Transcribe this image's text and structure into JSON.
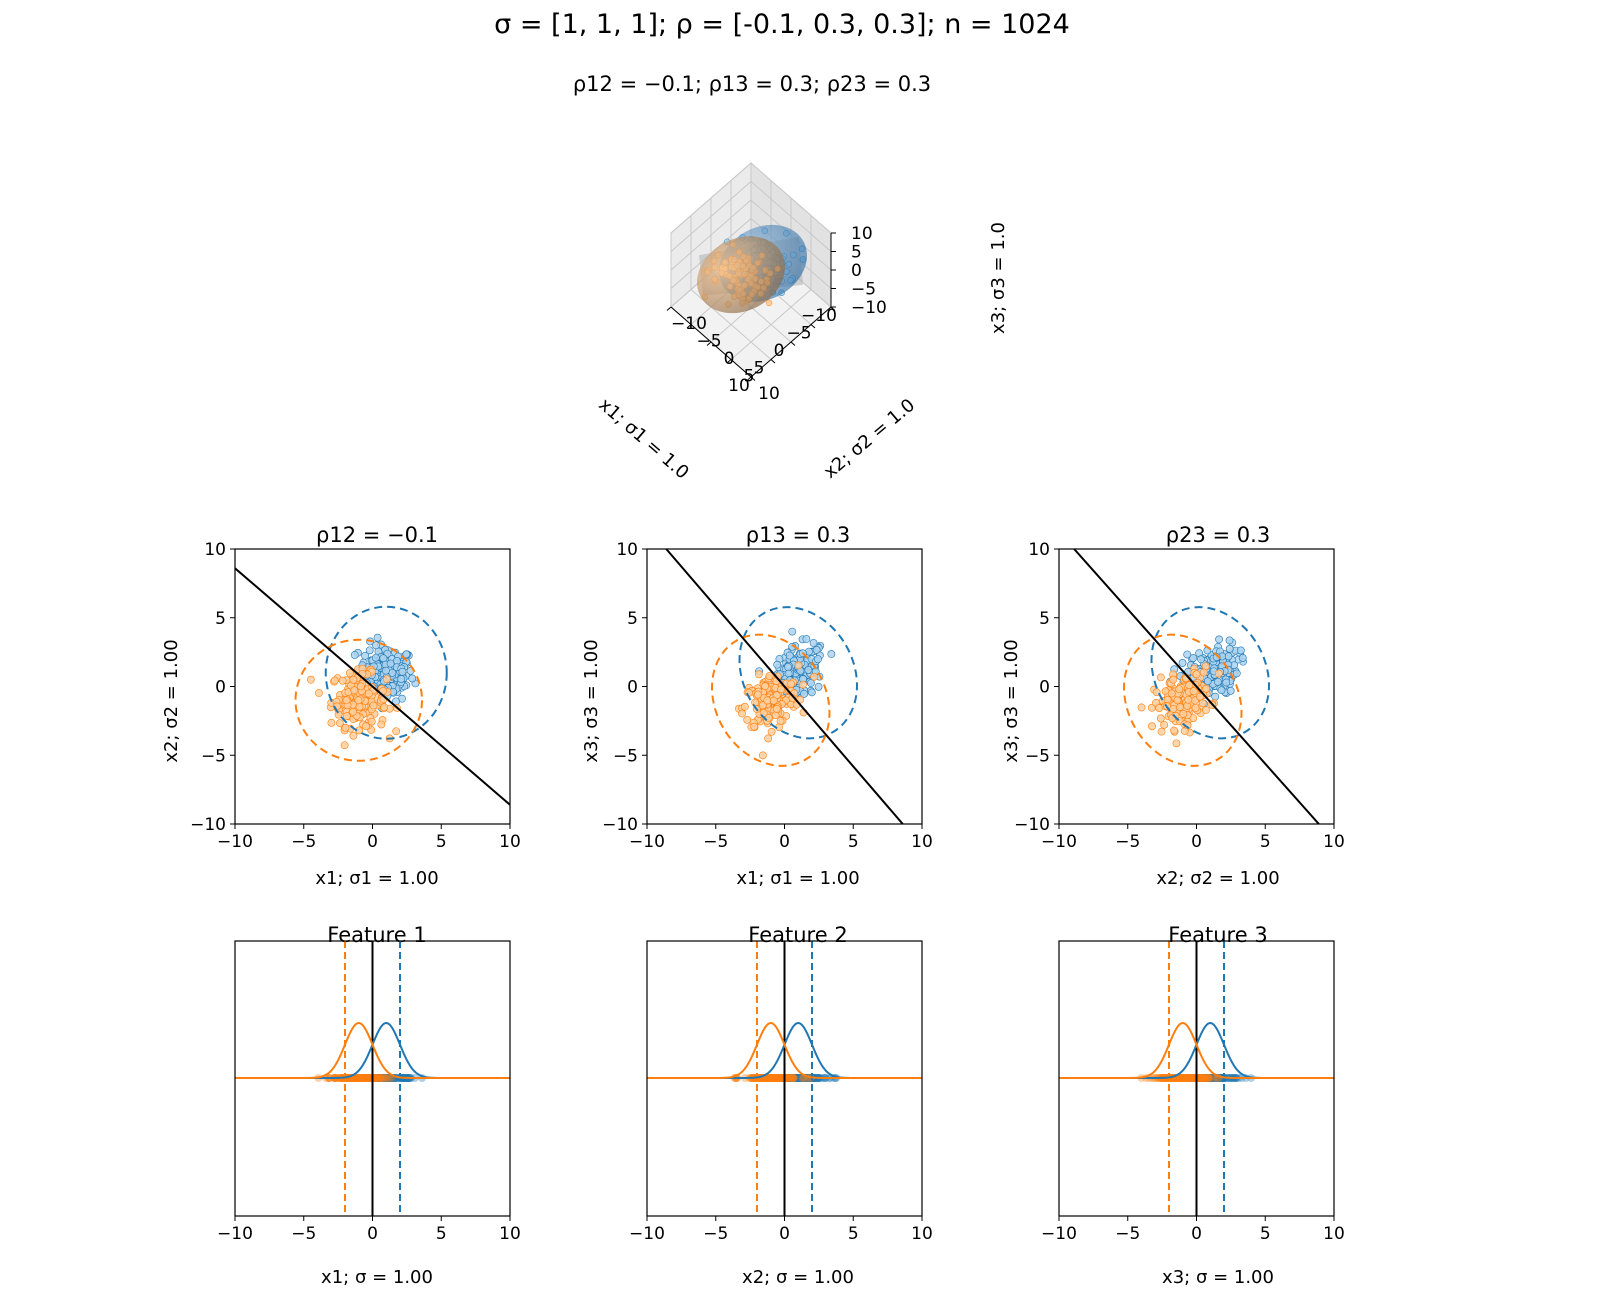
{
  "suptitle": "σ = [1, 1, 1]; ρ = [-0.1, 0.3, 0.3]; n = 1024",
  "colors": {
    "blue": "#1f77b4",
    "orange": "#ff7f0e",
    "line": "#000000"
  },
  "chart_data": [
    {
      "type": "3d-scatter",
      "title": "ρ12 = −0.1;  ρ13 = 0.3;  ρ23 = 0.3",
      "xlabel": "x1;  σ1 = 1.0",
      "ylabel": "x2;  σ2 = 1.0",
      "zlabel": "x3;  σ3 = 1.0",
      "xticks": [
        "−10",
        "−5",
        "0",
        "5",
        "10"
      ],
      "yticks": [
        "−10",
        "−5",
        "0",
        "5",
        "10"
      ],
      "zticks": [
        "−10",
        "−5",
        "0",
        "5",
        "10"
      ],
      "range": [
        -10,
        10
      ],
      "series": [
        {
          "color": "blue",
          "mean": [
            1,
            1,
            1
          ]
        },
        {
          "color": "orange",
          "mean": [
            -1,
            -1,
            -1
          ]
        }
      ]
    },
    {
      "type": "scatter",
      "title": "ρ12 = −0.1",
      "xlabel": "x1;  σ1 = 1.00",
      "ylabel": "x2;  σ2 = 1.00",
      "xlim": [
        -10,
        10
      ],
      "ylim": [
        -10,
        10
      ],
      "xticks": [
        "−10",
        "−5",
        "0",
        "5",
        "10"
      ],
      "yticks": [
        "−10",
        "−5",
        "0",
        "5",
        "10"
      ],
      "series": [
        {
          "color": "blue",
          "mean": [
            1,
            1
          ],
          "rho": -0.1,
          "ellipse_axes": [
            4.4,
            4.8
          ]
        },
        {
          "color": "orange",
          "mean": [
            -1,
            -1
          ],
          "rho": -0.1,
          "ellipse_axes": [
            4.6,
            4.4
          ]
        }
      ],
      "boundary": {
        "x": [
          -10,
          10
        ],
        "y": [
          8.6,
          -8.6
        ]
      }
    },
    {
      "type": "scatter",
      "title": "ρ13 = 0.3",
      "xlabel": "x1;  σ1 = 1.00",
      "ylabel": "x3;  σ3 = 1.00",
      "xlim": [
        -10,
        10
      ],
      "ylim": [
        -10,
        10
      ],
      "xticks": [
        "−10",
        "−5",
        "0",
        "5",
        "10"
      ],
      "yticks": [
        "−10",
        "−5",
        "0",
        "5",
        "10"
      ],
      "series": [
        {
          "color": "blue",
          "mean": [
            1,
            1
          ],
          "rho": 0.3,
          "ellipse_axes": [
            4.0,
            5.0
          ]
        },
        {
          "color": "orange",
          "mean": [
            -1,
            -1
          ],
          "rho": 0.3,
          "ellipse_axes": [
            4.0,
            5.0
          ]
        }
      ],
      "boundary": {
        "x": [
          -8.6,
          8.6
        ],
        "y": [
          10,
          -10
        ]
      }
    },
    {
      "type": "scatter",
      "title": "ρ23 = 0.3",
      "xlabel": "x2;  σ2 = 1.00",
      "ylabel": "x3;  σ3 = 1.00",
      "xlim": [
        -10,
        10
      ],
      "ylim": [
        -10,
        10
      ],
      "xticks": [
        "−10",
        "−5",
        "0",
        "5",
        "10"
      ],
      "yticks": [
        "−10",
        "−5",
        "0",
        "5",
        "10"
      ],
      "series": [
        {
          "color": "blue",
          "mean": [
            1,
            1
          ],
          "rho": 0.3,
          "ellipse_axes": [
            4.0,
            5.0
          ]
        },
        {
          "color": "orange",
          "mean": [
            -1,
            -1
          ],
          "rho": 0.3,
          "ellipse_axes": [
            4.0,
            5.0
          ]
        }
      ],
      "boundary": {
        "x": [
          -8.9,
          8.9
        ],
        "y": [
          10,
          -10
        ]
      }
    },
    {
      "type": "line",
      "title": "Feature 1",
      "xlabel": "x1; σ = 1.00",
      "xlim": [
        -10,
        10
      ],
      "xticks": [
        "−10",
        "−5",
        "0",
        "5",
        "10"
      ],
      "series": [
        {
          "color": "blue",
          "mean": 1,
          "sigma": 1,
          "threshold": 2
        },
        {
          "color": "orange",
          "mean": -1,
          "sigma": 1,
          "threshold": -2
        }
      ],
      "decision": 0
    },
    {
      "type": "line",
      "title": "Feature 2",
      "xlabel": "x2; σ = 1.00",
      "xlim": [
        -10,
        10
      ],
      "xticks": [
        "−10",
        "−5",
        "0",
        "5",
        "10"
      ],
      "series": [
        {
          "color": "blue",
          "mean": 1,
          "sigma": 1,
          "threshold": 2
        },
        {
          "color": "orange",
          "mean": -1,
          "sigma": 1,
          "threshold": -2
        }
      ],
      "decision": 0
    },
    {
      "type": "line",
      "title": "Feature 3",
      "xlabel": "x3; σ = 1.00",
      "xlim": [
        -10,
        10
      ],
      "xticks": [
        "−10",
        "−5",
        "0",
        "5",
        "10"
      ],
      "series": [
        {
          "color": "blue",
          "mean": 1,
          "sigma": 1,
          "threshold": 2
        },
        {
          "color": "orange",
          "mean": -1,
          "sigma": 1,
          "threshold": -2
        }
      ],
      "decision": 0
    }
  ]
}
